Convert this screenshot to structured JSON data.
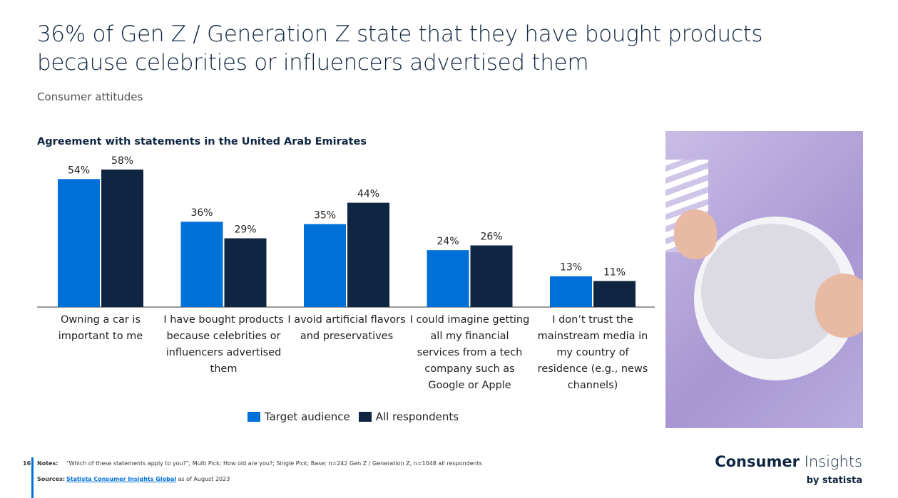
{
  "chart_data": {
    "type": "bar",
    "title": "36% of Gen Z / Generation Z state that they have bought products because celebrities or influencers advertised them",
    "subtitle": "Consumer attitudes",
    "chart_title": "Agreement with statements in the United Arab Emirates",
    "categories": [
      "Owning a car is important to me",
      "I have bought products because celebrities or influencers advertised them",
      "I avoid artificial flavors and preservatives",
      "I could imagine getting all my financial services from a tech company such as Google or Apple",
      "I don’t trust the mainstream media in my country of residence (e.g., news channels)"
    ],
    "series": [
      {
        "name": "Target audience",
        "color": "#0070d9",
        "values": [
          54,
          36,
          35,
          24,
          13
        ],
        "value_labels": [
          "54%",
          "36%",
          "35%",
          "24%",
          "13%"
        ]
      },
      {
        "name": "All respondents",
        "color": "#0f2541",
        "values": [
          58,
          29,
          44,
          26,
          11
        ],
        "value_labels": [
          "58%",
          "29%",
          "44%",
          "26%",
          "11%"
        ]
      }
    ]
  },
  "footer": {
    "page_number": "16",
    "notes_label": "Notes:",
    "notes": "\"Which of these statements apply to you?\"; Multi Pick; How old are you?; Single Pick; Base: n=242 Gen Z / Generation Z, n=1048 all respondents",
    "sources_label": "Sources:",
    "source_link": "Statista Consumer Insights Global",
    "source_date": "as of August 2023",
    "brand_bold": "Consumer",
    "brand_light": "Insights",
    "brand_by": "by statista"
  }
}
